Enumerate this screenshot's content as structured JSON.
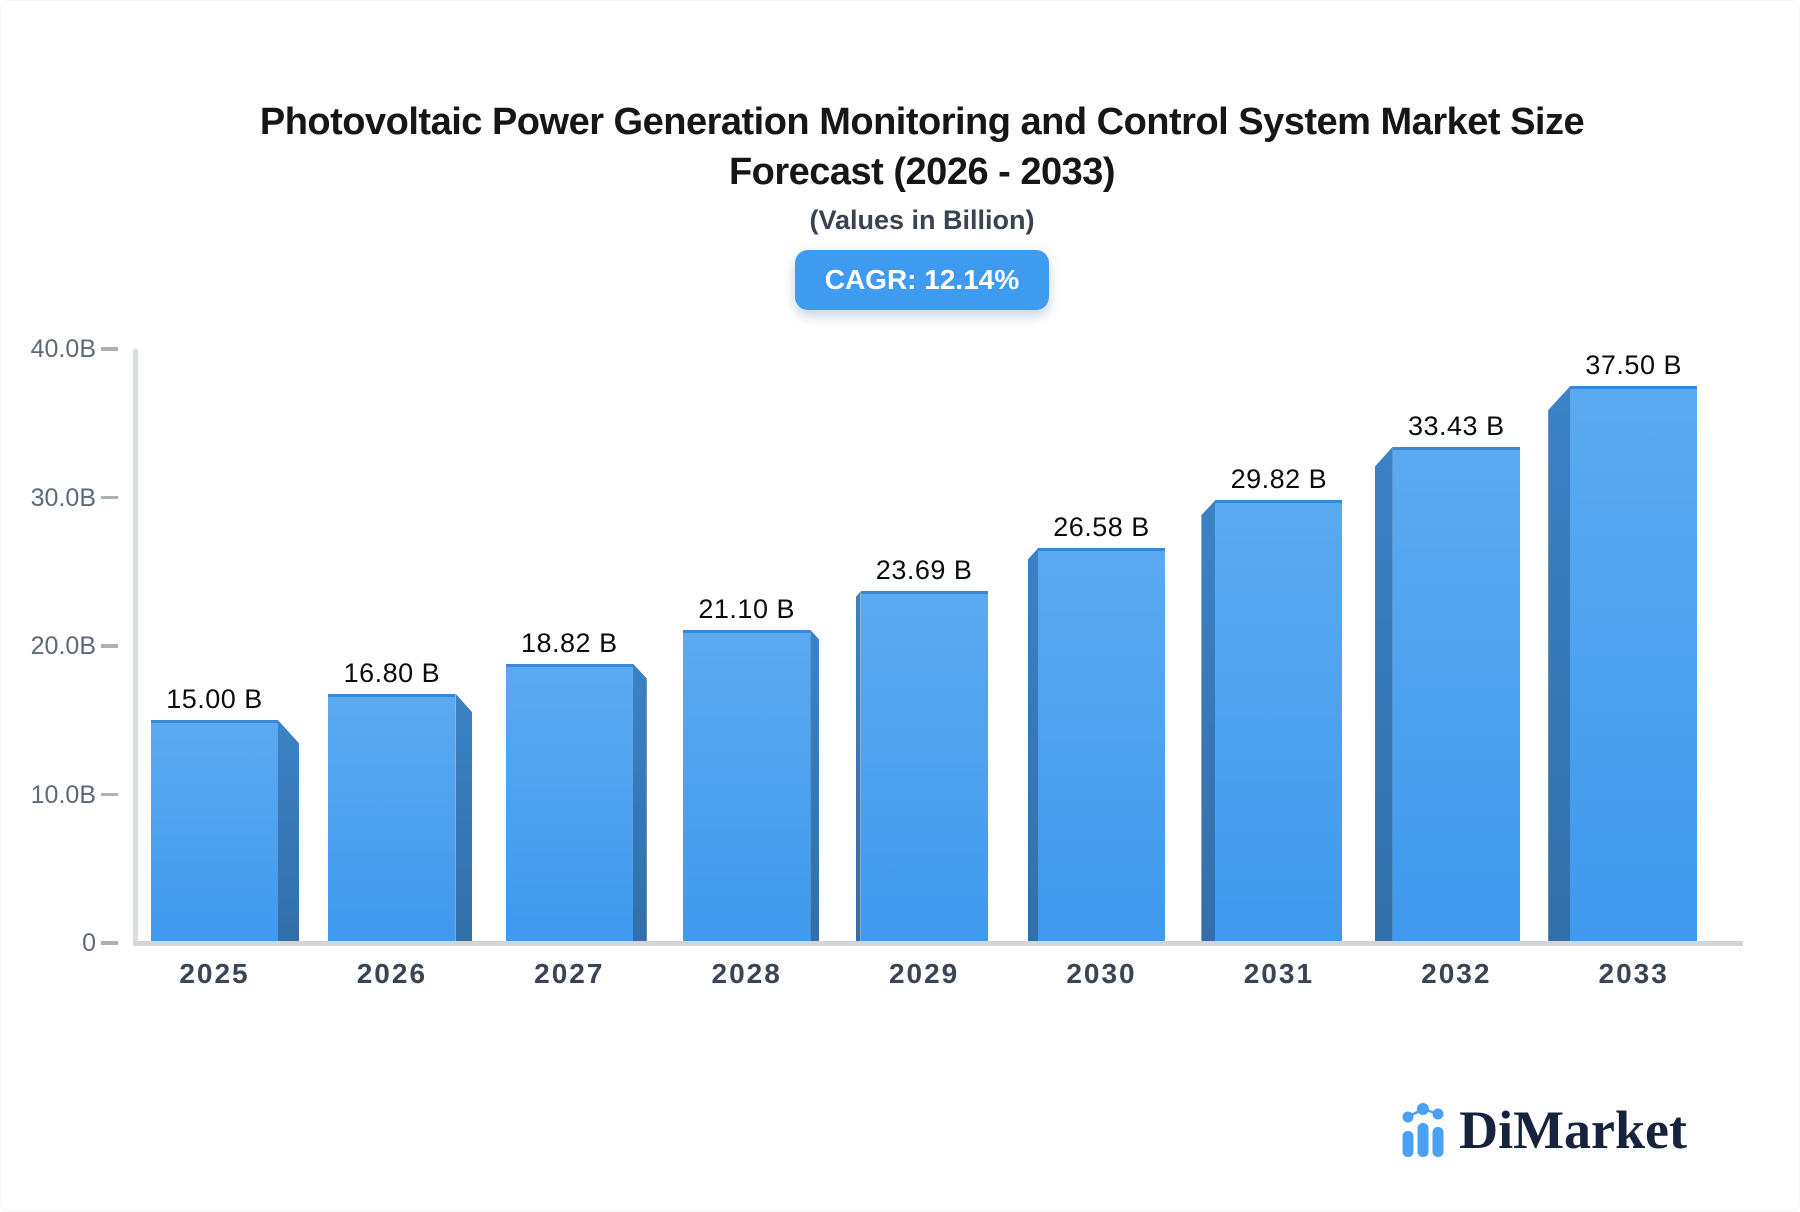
{
  "header": {
    "title_line1": "Photovoltaic Power Generation Monitoring and Control System Market Size",
    "title_line2": "Forecast (2026 - 2033)",
    "subtitle": "(Values in Billion)",
    "cagr_label": "CAGR: 12.14%",
    "badge_color": "#3F9BF0"
  },
  "chart_data": {
    "type": "bar",
    "title": "Photovoltaic Power Generation Monitoring and Control System Market Size Forecast (2026 - 2033)",
    "subtitle": "(Values in Billion)",
    "cagr_percent": "12.14%",
    "categories": [
      "2025",
      "2026",
      "2027",
      "2028",
      "2029",
      "2030",
      "2031",
      "2032",
      "2033"
    ],
    "values": [
      15.0,
      16.8,
      18.82,
      21.1,
      23.69,
      26.58,
      29.82,
      33.43,
      37.5
    ],
    "value_labels": [
      "15.00 B",
      "16.80 B",
      "18.82 B",
      "21.10 B",
      "23.69 B",
      "26.58 B",
      "29.82 B",
      "33.43 B",
      "37.50 B"
    ],
    "xlabel": "",
    "ylabel": "",
    "ylim": [
      0,
      40
    ],
    "yticks": [
      {
        "label": "40.0B",
        "value": 40
      },
      {
        "label": "30.0B",
        "value": 30
      },
      {
        "label": "20.0B",
        "value": 20
      },
      {
        "label": "10.0B",
        "value": 10
      },
      {
        "label": "0",
        "value": 0
      }
    ],
    "grid": false,
    "legend": false,
    "bar_color": "#3F99ED",
    "bar_color_top": "#5BAAF1",
    "bar_top_border": "#3888D6",
    "bar_side_color_top": "#3B82C6",
    "bar_side_color_bottom": "#316FA9"
  },
  "branding": {
    "logo_text": "DiMarket",
    "logo_icon": "bar-line-chart-icon",
    "logo_icon_color": "#4AA0F5",
    "logo_text_color": "#17233C"
  }
}
